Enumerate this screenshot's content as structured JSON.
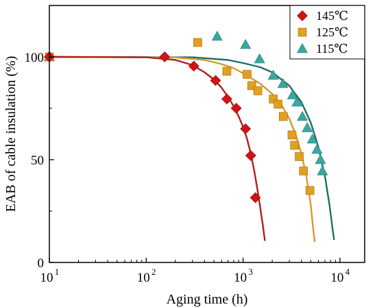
{
  "chart_data": {
    "type": "scatter",
    "xlabel": "Aging time (h)",
    "ylabel": "EAB of cable insulation (%)",
    "xscale": "log",
    "xlim": [
      10,
      18000
    ],
    "ylim": [
      0,
      125
    ],
    "x_ticks": [
      {
        "value": 10,
        "label": "10",
        "exp": "1"
      },
      {
        "value": 100,
        "label": "10",
        "exp": "2"
      },
      {
        "value": 1000,
        "label": "10",
        "exp": "3"
      },
      {
        "value": 10000,
        "label": "10",
        "exp": "4"
      }
    ],
    "y_ticks": [
      {
        "value": 0,
        "label": "0"
      },
      {
        "value": 50,
        "label": "50"
      },
      {
        "value": 100,
        "label": "100"
      }
    ],
    "legend_position": "top-right",
    "grid": false,
    "series": [
      {
        "name": "145℃",
        "marker": "diamond",
        "color": "#d01414",
        "line_color": "#b01e1e",
        "points": [
          [
            10,
            100
          ],
          [
            155,
            100
          ],
          [
            310,
            95.5
          ],
          [
            520,
            88.5
          ],
          [
            680,
            79.5
          ],
          [
            850,
            75
          ],
          [
            1060,
            65
          ],
          [
            1200,
            52
          ],
          [
            1340,
            31.5
          ]
        ],
        "fit": [
          [
            10,
            100
          ],
          [
            100,
            99.8
          ],
          [
            200,
            98.5
          ],
          [
            300,
            96
          ],
          [
            400,
            92.5
          ],
          [
            500,
            89
          ],
          [
            600,
            85
          ],
          [
            700,
            80.5
          ],
          [
            800,
            76
          ],
          [
            900,
            71
          ],
          [
            1000,
            66
          ],
          [
            1100,
            60
          ],
          [
            1200,
            53
          ],
          [
            1300,
            45
          ],
          [
            1400,
            36
          ],
          [
            1500,
            27
          ],
          [
            1600,
            18
          ],
          [
            1680,
            10.5
          ]
        ]
      },
      {
        "name": "125℃",
        "marker": "square",
        "color": "#e1a020",
        "line_color": "#d69a2a",
        "points": [
          [
            10,
            100
          ],
          [
            340,
            107
          ],
          [
            680,
            93
          ],
          [
            1100,
            91.5
          ],
          [
            1230,
            86
          ],
          [
            1420,
            83.5
          ],
          [
            2050,
            79.5
          ],
          [
            2300,
            77
          ],
          [
            2600,
            71
          ],
          [
            3200,
            62
          ],
          [
            3400,
            57
          ],
          [
            3800,
            51.5
          ],
          [
            4200,
            44.5
          ],
          [
            4900,
            35
          ]
        ],
        "fit": [
          [
            10,
            100
          ],
          [
            200,
            99.7
          ],
          [
            400,
            98.5
          ],
          [
            600,
            96.5
          ],
          [
            800,
            94.5
          ],
          [
            1000,
            92
          ],
          [
            1500,
            87
          ],
          [
            2000,
            82
          ],
          [
            2500,
            76.5
          ],
          [
            3000,
            70
          ],
          [
            3500,
            62
          ],
          [
            4000,
            53
          ],
          [
            4500,
            42
          ],
          [
            5000,
            28
          ],
          [
            5300,
            16
          ],
          [
            5500,
            10
          ]
        ]
      },
      {
        "name": "115℃",
        "marker": "triangle",
        "color": "#3aa7a1",
        "line_color": "#1d6f68",
        "points": [
          [
            10,
            100
          ],
          [
            540,
            110
          ],
          [
            1060,
            106
          ],
          [
            1480,
            99
          ],
          [
            2050,
            91
          ],
          [
            2580,
            87
          ],
          [
            3250,
            81.5
          ],
          [
            3600,
            78
          ],
          [
            4100,
            71
          ],
          [
            4600,
            65.5
          ],
          [
            5200,
            60
          ],
          [
            5800,
            55
          ],
          [
            6300,
            50
          ],
          [
            6600,
            44.5
          ]
        ],
        "fit": [
          [
            10,
            100
          ],
          [
            300,
            99.8
          ],
          [
            700,
            98.5
          ],
          [
            1000,
            97
          ],
          [
            1500,
            95
          ],
          [
            2000,
            92.5
          ],
          [
            3000,
            86
          ],
          [
            4000,
            78
          ],
          [
            5000,
            68
          ],
          [
            6000,
            56
          ],
          [
            7000,
            42
          ],
          [
            7800,
            28
          ],
          [
            8300,
            18
          ],
          [
            8700,
            11
          ]
        ]
      }
    ]
  }
}
